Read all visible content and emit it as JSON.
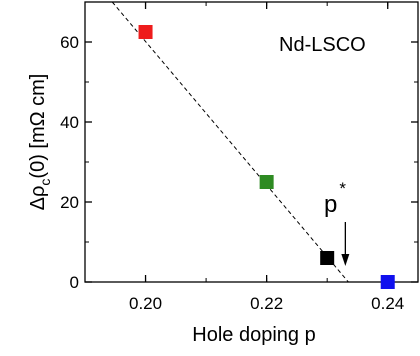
{
  "chart_data": {
    "type": "scatter",
    "title": "Nd-LSCO",
    "xlabel": "Hole doping p",
    "ylabel_main": "Δρ",
    "ylabel_sub": "c",
    "ylabel_rest": "(0)  [mΩ cm]",
    "xlim": [
      0.19,
      0.245
    ],
    "ylim": [
      0,
      70
    ],
    "x_ticks": [
      0.2,
      0.22,
      0.24
    ],
    "x_tick_labels": [
      "0.20",
      "0.22",
      "0.24"
    ],
    "y_ticks": [
      0,
      20,
      40,
      60
    ],
    "y_tick_labels": [
      "0",
      "20",
      "40",
      "60"
    ],
    "grid": false,
    "points": [
      {
        "x": 0.2,
        "y": 62.5,
        "color": "#ee1c1c"
      },
      {
        "x": 0.22,
        "y": 25.0,
        "color": "#2e8b22"
      },
      {
        "x": 0.23,
        "y": 6.0,
        "color": "#000000"
      },
      {
        "x": 0.24,
        "y": 0.0,
        "color": "#1010ee"
      }
    ],
    "fit_line": {
      "style": "dashed",
      "from": {
        "x": 0.1945,
        "y": 70
      },
      "to": {
        "x": 0.2335,
        "y": 0
      }
    },
    "annotation": {
      "label": "p",
      "superscript": "*",
      "arrow_to_x": 0.233
    }
  }
}
